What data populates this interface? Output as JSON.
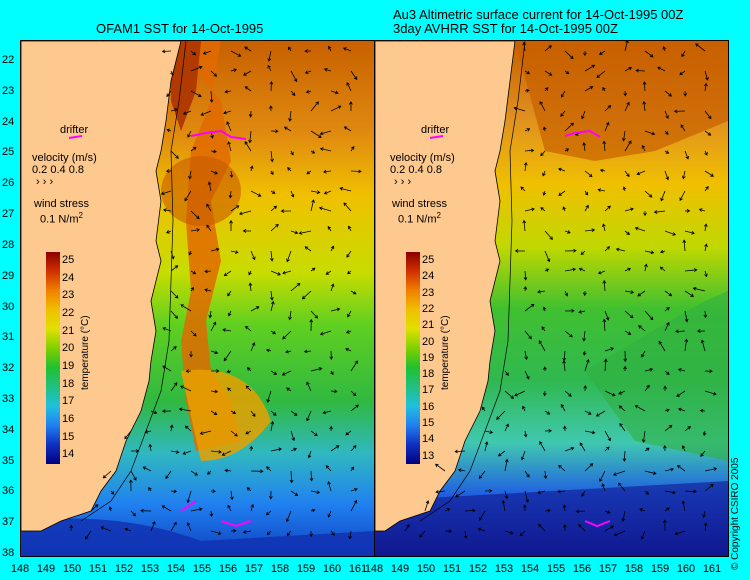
{
  "titles": {
    "left": "OFAM1 SST for 14-Oct-1995",
    "right_line1": "Au3 Altimetric surface current for 14-Oct-1995 00Z",
    "right_line2": "3day AVHRR SST for 14-Oct-1995 00Z"
  },
  "y_axis_labels": [
    "22",
    "23",
    "24",
    "25",
    "26",
    "27",
    "28",
    "29",
    "30",
    "31",
    "32",
    "33",
    "34",
    "35",
    "36",
    "37",
    "38"
  ],
  "x_axis_labels": [
    "148",
    "149",
    "150",
    "151",
    "152",
    "153",
    "154",
    "155",
    "156",
    "157",
    "158",
    "159",
    "160",
    "161"
  ],
  "legend": {
    "drifter": "drifter",
    "velocity": "velocity (m/s)",
    "velocity_scale": "0.2 0.4 0.8",
    "wind_stress": "wind stress",
    "wind_scale": "0.1",
    "wind_unit": "N/m",
    "wind_unit_sup": "2"
  },
  "colorbar": {
    "title": "temperature (°C)",
    "left_ticks": [
      "25",
      "24",
      "23",
      "22",
      "21",
      "20",
      "19",
      "18",
      "17",
      "16",
      "15",
      "14"
    ],
    "right_ticks": [
      "25",
      "24",
      "23",
      "22",
      "21",
      "20",
      "19",
      "18",
      "17",
      "16",
      "15",
      "14",
      "13"
    ]
  },
  "copyright": "© Copyright CSIRO 2005",
  "colors": {
    "background": "#00ffff",
    "land": "#fdc98f",
    "vector": "#000000",
    "drifter": "#ff00ff"
  }
}
